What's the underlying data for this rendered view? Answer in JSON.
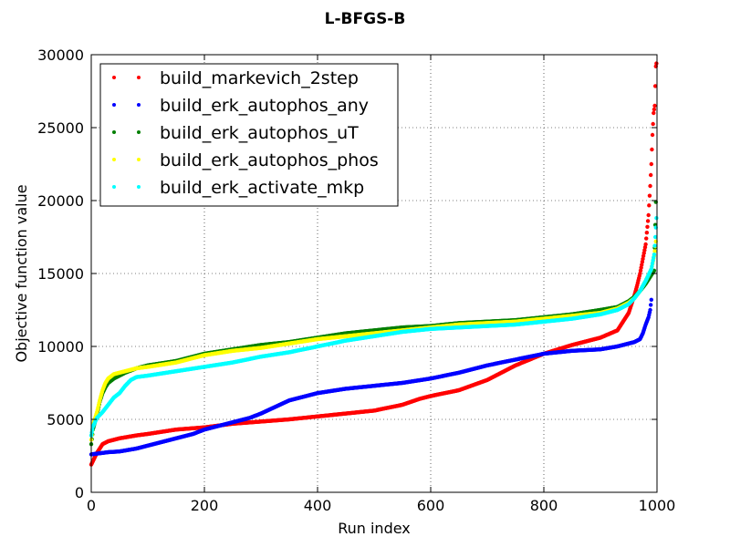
{
  "chart_data": {
    "type": "scatter",
    "title": "L-BFGS-B",
    "xlabel": "Run index",
    "ylabel": "Objective function value",
    "xlim": [
      0,
      1000
    ],
    "ylim": [
      0,
      30000
    ],
    "xticks": [
      0,
      200,
      400,
      600,
      800,
      1000
    ],
    "yticks": [
      0,
      5000,
      10000,
      15000,
      20000,
      25000,
      30000
    ],
    "grid": true,
    "legend_position": "top-left",
    "series": [
      {
        "name": "build_markevich_2step",
        "color": "#ff0000",
        "points": [
          [
            0,
            1900
          ],
          [
            5,
            2300
          ],
          [
            10,
            2700
          ],
          [
            15,
            3000
          ],
          [
            20,
            3300
          ],
          [
            30,
            3500
          ],
          [
            50,
            3700
          ],
          [
            80,
            3900
          ],
          [
            100,
            4000
          ],
          [
            150,
            4300
          ],
          [
            200,
            4450
          ],
          [
            250,
            4700
          ],
          [
            300,
            4850
          ],
          [
            350,
            5000
          ],
          [
            400,
            5200
          ],
          [
            450,
            5400
          ],
          [
            500,
            5600
          ],
          [
            550,
            6000
          ],
          [
            580,
            6400
          ],
          [
            600,
            6600
          ],
          [
            650,
            7000
          ],
          [
            700,
            7700
          ],
          [
            750,
            8700
          ],
          [
            800,
            9500
          ],
          [
            850,
            10100
          ],
          [
            900,
            10600
          ],
          [
            930,
            11100
          ],
          [
            950,
            12300
          ],
          [
            960,
            13500
          ],
          [
            965,
            14200
          ],
          [
            970,
            15000
          ],
          [
            975,
            16000
          ],
          [
            980,
            17000
          ],
          [
            985,
            19000
          ],
          [
            988,
            21000
          ],
          [
            990,
            22500
          ],
          [
            992,
            24500
          ],
          [
            994,
            26000
          ],
          [
            996,
            26500
          ],
          [
            998,
            29200
          ],
          [
            999,
            29400
          ]
        ]
      },
      {
        "name": "build_erk_autophos_any",
        "color": "#0000ff",
        "points": [
          [
            0,
            2600
          ],
          [
            10,
            2650
          ],
          [
            20,
            2700
          ],
          [
            30,
            2750
          ],
          [
            50,
            2800
          ],
          [
            80,
            3000
          ],
          [
            100,
            3200
          ],
          [
            150,
            3700
          ],
          [
            180,
            4000
          ],
          [
            200,
            4300
          ],
          [
            250,
            4800
          ],
          [
            280,
            5100
          ],
          [
            300,
            5400
          ],
          [
            350,
            6300
          ],
          [
            400,
            6800
          ],
          [
            450,
            7100
          ],
          [
            500,
            7300
          ],
          [
            550,
            7500
          ],
          [
            600,
            7800
          ],
          [
            650,
            8200
          ],
          [
            700,
            8700
          ],
          [
            750,
            9100
          ],
          [
            800,
            9500
          ],
          [
            850,
            9700
          ],
          [
            900,
            9800
          ],
          [
            930,
            10000
          ],
          [
            950,
            10200
          ],
          [
            960,
            10300
          ],
          [
            970,
            10500
          ],
          [
            975,
            10900
          ],
          [
            980,
            11500
          ],
          [
            985,
            12000
          ],
          [
            988,
            12500
          ],
          [
            990,
            13200
          ]
        ]
      },
      {
        "name": "build_erk_autophos_uT",
        "color": "#007f00",
        "points": [
          [
            0,
            3300
          ],
          [
            3,
            4300
          ],
          [
            10,
            5300
          ],
          [
            15,
            6200
          ],
          [
            20,
            6800
          ],
          [
            25,
            7200
          ],
          [
            30,
            7500
          ],
          [
            40,
            7800
          ],
          [
            60,
            8200
          ],
          [
            80,
            8500
          ],
          [
            100,
            8700
          ],
          [
            150,
            9000
          ],
          [
            200,
            9500
          ],
          [
            250,
            9800
          ],
          [
            300,
            10100
          ],
          [
            350,
            10300
          ],
          [
            400,
            10600
          ],
          [
            450,
            10900
          ],
          [
            500,
            11100
          ],
          [
            550,
            11300
          ],
          [
            600,
            11400
          ],
          [
            650,
            11600
          ],
          [
            700,
            11700
          ],
          [
            750,
            11800
          ],
          [
            800,
            12000
          ],
          [
            850,
            12200
          ],
          [
            900,
            12500
          ],
          [
            930,
            12700
          ],
          [
            950,
            13100
          ],
          [
            960,
            13400
          ],
          [
            970,
            13800
          ],
          [
            980,
            14300
          ],
          [
            990,
            14900
          ],
          [
            995,
            15200
          ],
          [
            998,
            19900
          ]
        ]
      },
      {
        "name": "build_erk_autophos_phos",
        "color": "#ffff00",
        "points": [
          [
            0,
            3600
          ],
          [
            3,
            4600
          ],
          [
            10,
            5500
          ],
          [
            15,
            6300
          ],
          [
            20,
            7000
          ],
          [
            25,
            7500
          ],
          [
            30,
            7800
          ],
          [
            40,
            8100
          ],
          [
            60,
            8300
          ],
          [
            80,
            8500
          ],
          [
            100,
            8600
          ],
          [
            150,
            8900
          ],
          [
            200,
            9400
          ],
          [
            250,
            9700
          ],
          [
            300,
            9900
          ],
          [
            350,
            10200
          ],
          [
            400,
            10500
          ],
          [
            450,
            10700
          ],
          [
            500,
            10900
          ],
          [
            550,
            11100
          ],
          [
            600,
            11300
          ],
          [
            650,
            11500
          ],
          [
            700,
            11600
          ],
          [
            750,
            11700
          ],
          [
            800,
            11900
          ],
          [
            850,
            12100
          ],
          [
            900,
            12300
          ],
          [
            930,
            12600
          ],
          [
            950,
            13000
          ],
          [
            960,
            13300
          ],
          [
            970,
            13800
          ],
          [
            980,
            14500
          ],
          [
            990,
            15300
          ],
          [
            995,
            16200
          ],
          [
            998,
            17200
          ]
        ]
      },
      {
        "name": "build_erk_activate_mkp",
        "color": "#00ffff",
        "points": [
          [
            0,
            3900
          ],
          [
            3,
            4500
          ],
          [
            10,
            5100
          ],
          [
            20,
            5500
          ],
          [
            30,
            6000
          ],
          [
            40,
            6500
          ],
          [
            50,
            6800
          ],
          [
            60,
            7300
          ],
          [
            70,
            7700
          ],
          [
            80,
            7900
          ],
          [
            100,
            8000
          ],
          [
            150,
            8300
          ],
          [
            200,
            8600
          ],
          [
            250,
            8900
          ],
          [
            300,
            9300
          ],
          [
            350,
            9600
          ],
          [
            400,
            10000
          ],
          [
            450,
            10400
          ],
          [
            500,
            10700
          ],
          [
            550,
            11000
          ],
          [
            600,
            11200
          ],
          [
            650,
            11300
          ],
          [
            700,
            11400
          ],
          [
            750,
            11500
          ],
          [
            800,
            11700
          ],
          [
            850,
            11900
          ],
          [
            900,
            12200
          ],
          [
            930,
            12500
          ],
          [
            950,
            12900
          ],
          [
            960,
            13300
          ],
          [
            970,
            13800
          ],
          [
            980,
            14500
          ],
          [
            990,
            15300
          ],
          [
            995,
            16300
          ],
          [
            997,
            17500
          ],
          [
            999,
            18800
          ]
        ]
      }
    ]
  }
}
